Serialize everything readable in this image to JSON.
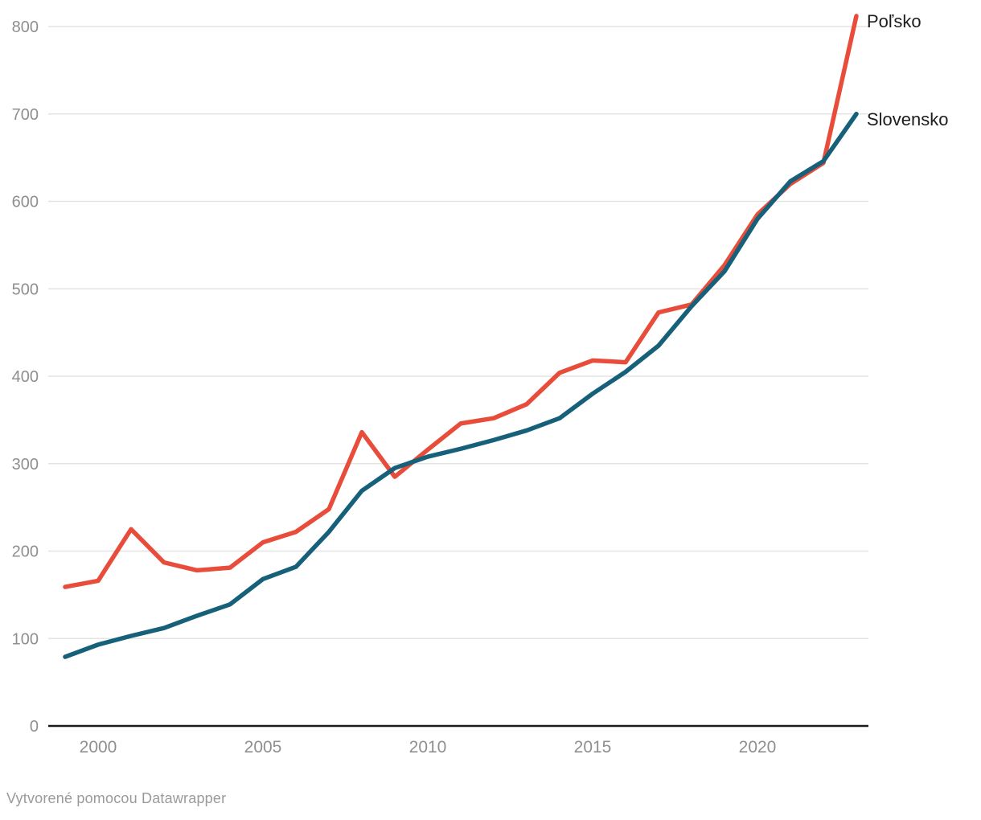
{
  "chart_data": {
    "type": "line",
    "title": "",
    "x": [
      1999,
      2000,
      2001,
      2002,
      2003,
      2004,
      2005,
      2006,
      2007,
      2008,
      2009,
      2010,
      2011,
      2012,
      2013,
      2014,
      2015,
      2016,
      2017,
      2018,
      2019,
      2020,
      2021,
      2022,
      2023
    ],
    "series": [
      {
        "name": "Poľsko",
        "color": "#e84c3a",
        "values": [
          159,
          166,
          225,
          187,
          178,
          181,
          210,
          222,
          248,
          336,
          285,
          316,
          346,
          352,
          368,
          404,
          418,
          416,
          473,
          482,
          527,
          585,
          620,
          644,
          812
        ]
      },
      {
        "name": "Slovensko",
        "color": "#16607a",
        "values": [
          79,
          93,
          103,
          112,
          126,
          139,
          168,
          182,
          222,
          269,
          295,
          308,
          317,
          327,
          338,
          352,
          380,
          405,
          435,
          480,
          520,
          580,
          623,
          646,
          700
        ]
      }
    ],
    "ylim": [
      0,
      800
    ],
    "yticks": [
      0,
      100,
      200,
      300,
      400,
      500,
      600,
      700,
      800
    ],
    "xticks": [
      2000,
      2005,
      2010,
      2015,
      2020
    ],
    "grid": true,
    "legend_position": "line-end-right"
  },
  "colors": {
    "grid": "#e4e4e4",
    "axis": "#1a1a1a",
    "tick_text": "#8f8f8f",
    "series_label_text": "#1d1d1d",
    "background": "#ffffff"
  },
  "footer": {
    "text": "Vytvorené pomocou Datawrapper"
  }
}
